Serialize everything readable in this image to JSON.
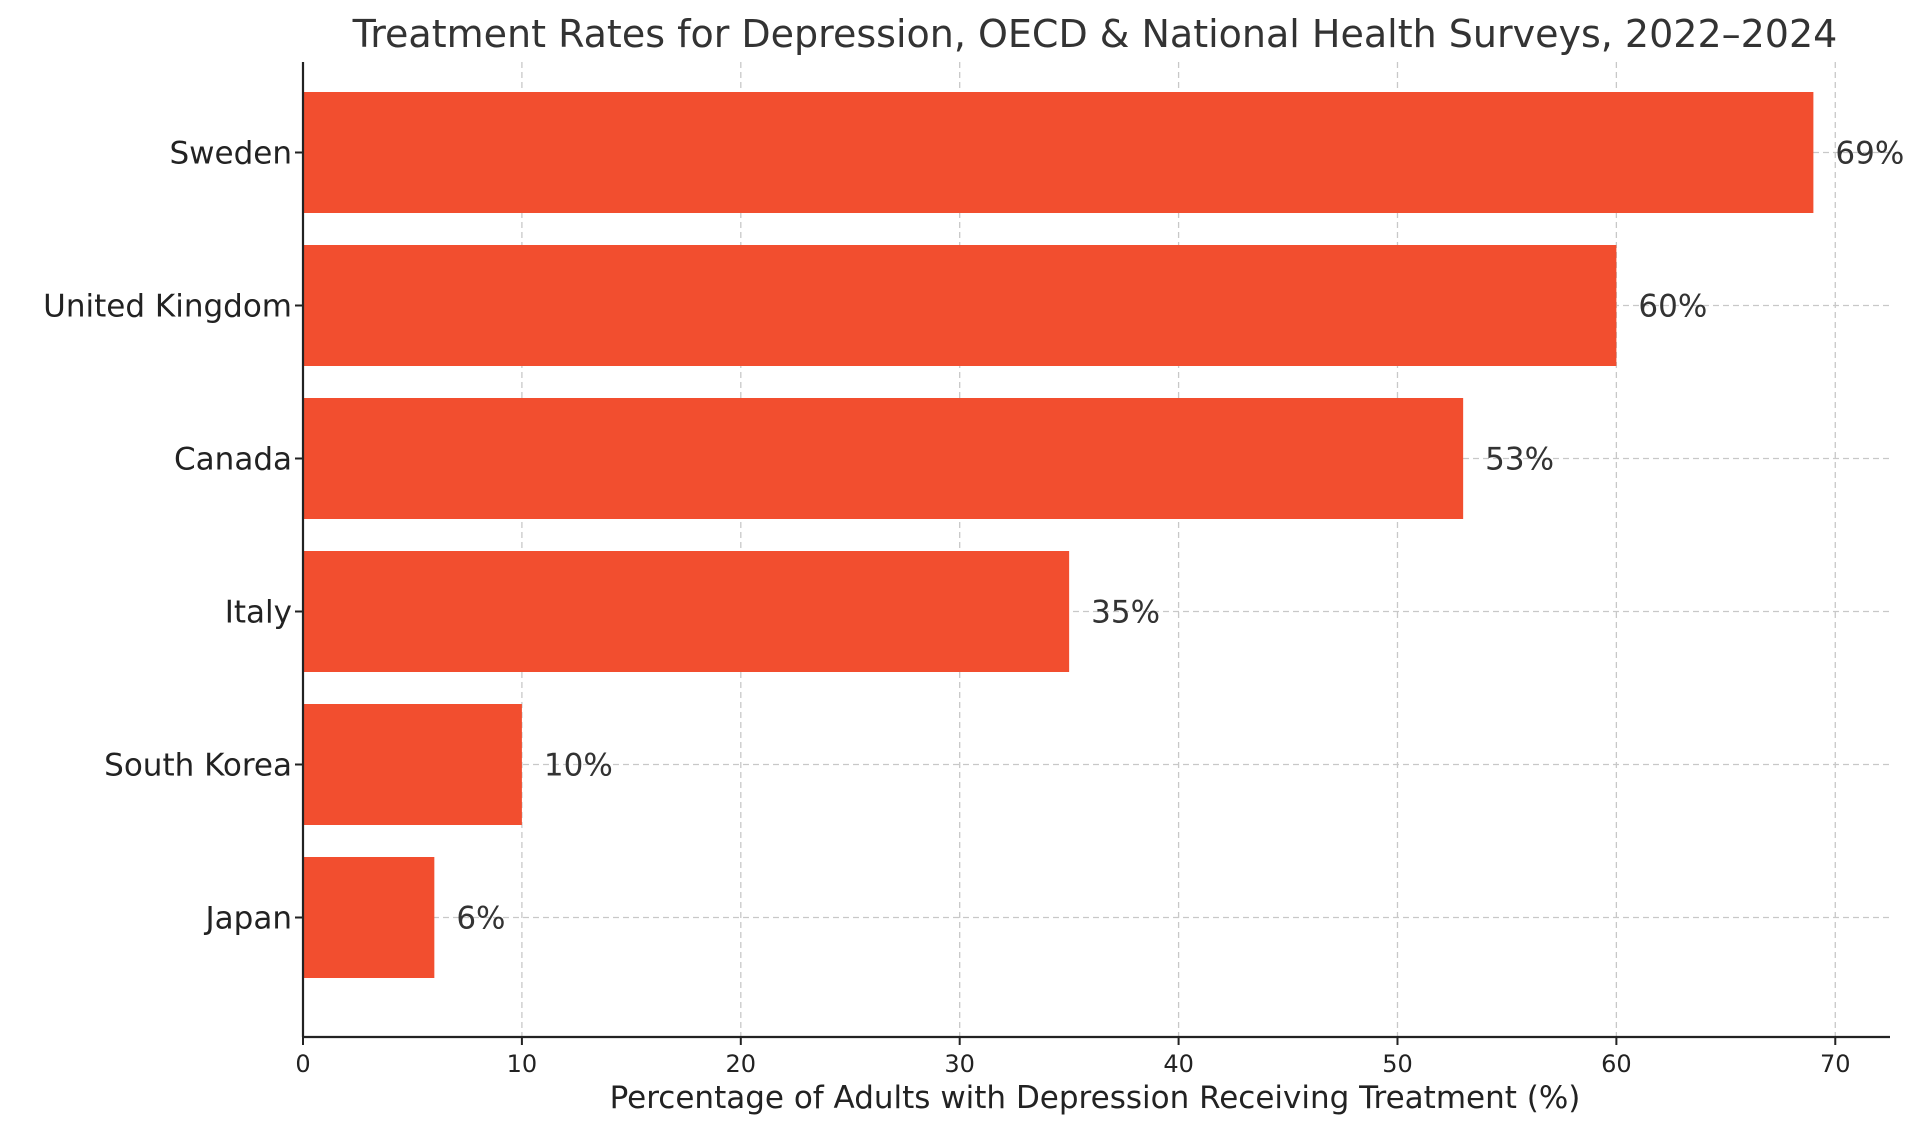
{
  "chart_data": {
    "type": "bar",
    "orientation": "horizontal",
    "title": "Treatment Rates for Depression, OECD & National Health Surveys, 2022–2024",
    "xlabel": "Percentage of Adults with Depression Receiving Treatment (%)",
    "ylabel": "",
    "categories": [
      "Sweden",
      "United Kingdom",
      "Canada",
      "Italy",
      "South Korea",
      "Japan"
    ],
    "values": [
      69,
      60,
      53,
      35,
      10,
      6
    ],
    "value_labels": [
      "69%",
      "60%",
      "53%",
      "35%",
      "10%",
      "6%"
    ],
    "xlim": [
      0,
      72.5
    ],
    "xticks": [
      0,
      10,
      20,
      30,
      40,
      50,
      60,
      70
    ],
    "xtick_labels": [
      "0",
      "10",
      "20",
      "30",
      "40",
      "50",
      "60",
      "70"
    ],
    "bar_color": "#f24e2f",
    "grid": true,
    "legend": "none"
  }
}
